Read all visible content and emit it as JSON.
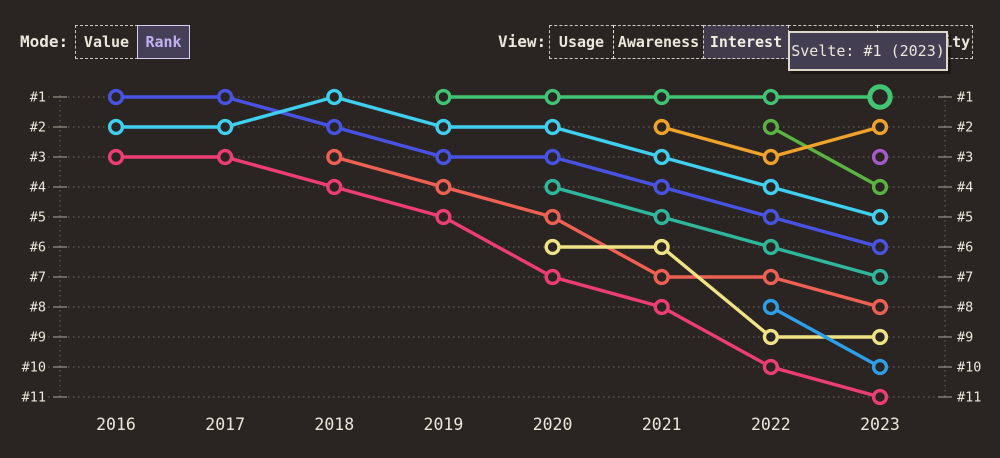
{
  "header": {
    "mode": {
      "label": "Mode:",
      "options": [
        {
          "label": "Value",
          "selected": false
        },
        {
          "label": "Rank",
          "selected": true
        }
      ]
    },
    "view": {
      "label": "View:",
      "options": [
        {
          "label": "Usage",
          "selected": false
        },
        {
          "label": "Awareness",
          "selected": false
        },
        {
          "label": "Interest",
          "selected": true
        },
        {
          "label": "",
          "selected": false
        },
        {
          "label": "Positivity",
          "selected": false
        }
      ]
    }
  },
  "tooltip": {
    "text": "Svelte: #1 (2023)"
  },
  "chart_data": {
    "type": "line",
    "variant": "bump-chart-of-ranks",
    "x": [
      2016,
      2017,
      2018,
      2019,
      2020,
      2021,
      2022,
      2023
    ],
    "y_axis": {
      "labels": [
        "#1",
        "#2",
        "#3",
        "#4",
        "#5",
        "#6",
        "#7",
        "#8",
        "#9",
        "#10",
        "#11"
      ],
      "inverted": true,
      "shown_on_both_sides": true
    },
    "grid": "dotted horizontal rank lines with dotted vertical axis lines left and right",
    "legend": "none",
    "series": [
      {
        "id": "pink",
        "color": "#ee3d74",
        "ranks": [
          3,
          3,
          4,
          5,
          7,
          8,
          10,
          11
        ]
      },
      {
        "id": "red",
        "color": "#ef6054",
        "ranks": [
          null,
          null,
          3,
          4,
          5,
          7,
          7,
          8
        ]
      },
      {
        "id": "blue",
        "color": "#4853e4",
        "ranks": [
          1,
          1,
          2,
          3,
          3,
          4,
          5,
          6
        ]
      },
      {
        "id": "cyan",
        "color": "#3fd0f0",
        "ranks": [
          2,
          2,
          1,
          2,
          2,
          3,
          4,
          5
        ]
      },
      {
        "id": "teal",
        "color": "#2fb79b",
        "ranks": [
          null,
          null,
          null,
          null,
          4,
          5,
          6,
          7
        ]
      },
      {
        "id": "yellow",
        "color": "#f0e385",
        "ranks": [
          null,
          null,
          null,
          null,
          6,
          6,
          9,
          9
        ]
      },
      {
        "id": "azure",
        "color": "#2d9fe8",
        "ranks": [
          null,
          null,
          null,
          null,
          null,
          null,
          8,
          10
        ]
      },
      {
        "id": "lime",
        "color": "#5bb441",
        "ranks": [
          null,
          null,
          null,
          null,
          null,
          null,
          2,
          4
        ]
      },
      {
        "id": "orange",
        "color": "#efa32a",
        "ranks": [
          null,
          null,
          null,
          null,
          null,
          2,
          3,
          2
        ]
      },
      {
        "id": "violet",
        "color": "#a55bc9",
        "ranks": [
          null,
          null,
          null,
          null,
          null,
          null,
          null,
          3
        ]
      },
      {
        "id": "svelte",
        "label": "Svelte",
        "color": "#41c473",
        "ranks": [
          null,
          null,
          null,
          1,
          1,
          1,
          1,
          1
        ]
      }
    ],
    "highlight": {
      "series": "svelte",
      "year": 2023,
      "rank": 1,
      "tooltip": "Svelte: #1 (2023)"
    }
  },
  "colors": {
    "background": "#2a2523",
    "text": "#ece7db",
    "gridline": "#6e6861",
    "tick": "#99938b",
    "selected_rank_bg": "#463f58",
    "selected_rank_text": "#c3b1f2",
    "selected_view_bg": "#413b4b",
    "tooltip_bg": "#433e52",
    "tooltip_border": "#ded8cc"
  }
}
